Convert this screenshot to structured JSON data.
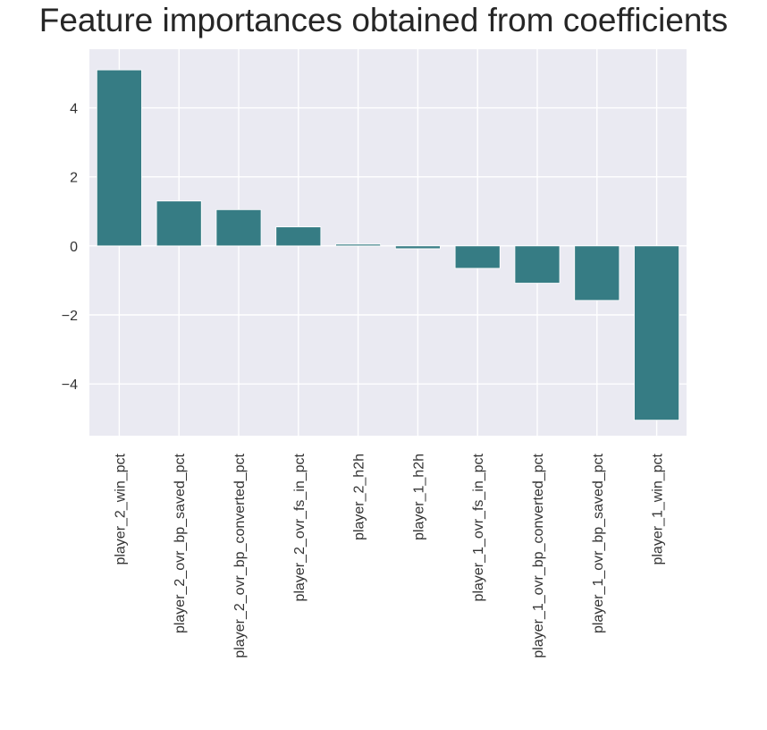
{
  "chart_data": {
    "type": "bar",
    "title": "Feature importances obtained from coefficients",
    "xlabel": "",
    "ylabel": "",
    "categories": [
      "player_2_win_pct",
      "player_2_ovr_bp_saved_pct",
      "player_2_ovr_bp_converted_pct",
      "player_2_ovr_fs_in_pct",
      "player_2_h2h",
      "player_1_h2h",
      "player_1_ovr_fs_in_pct",
      "player_1_ovr_bp_converted_pct",
      "player_1_ovr_bp_saved_pct",
      "player_1_win_pct"
    ],
    "values": [
      5.1,
      1.3,
      1.05,
      0.55,
      0.05,
      -0.08,
      -0.65,
      -1.08,
      -1.58,
      -5.05
    ],
    "yticks": [
      4,
      2,
      0,
      -2,
      -4
    ],
    "ytick_labels": [
      "4",
      "2",
      "0",
      "−2",
      "−4"
    ],
    "ylim": [
      -5.5,
      5.7
    ],
    "grid": true,
    "bar_color": "#367c84",
    "background_color": "#eaeaf2"
  }
}
